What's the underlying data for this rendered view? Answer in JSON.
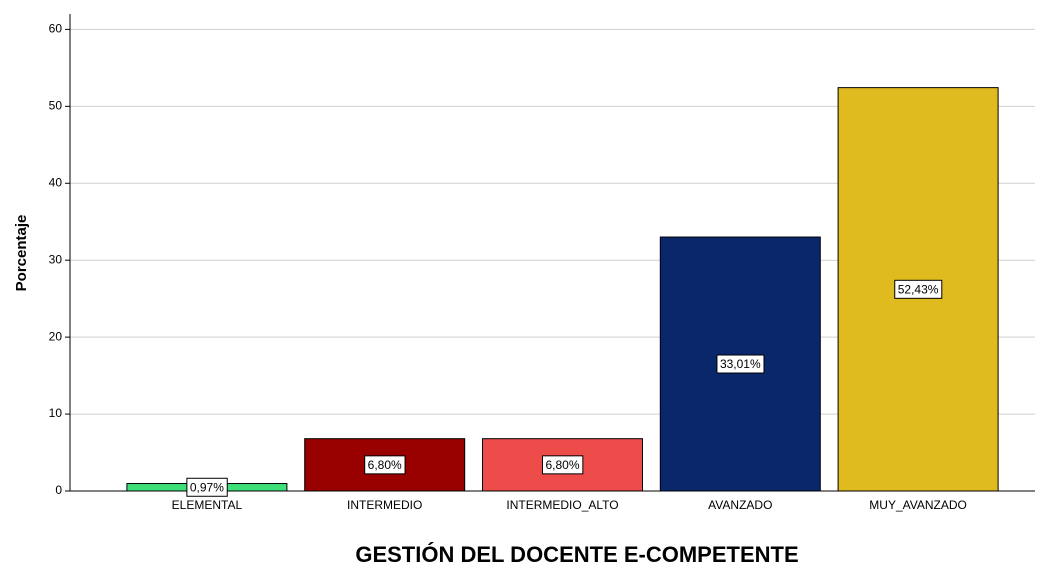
{
  "chart_data": {
    "type": "bar",
    "categories": [
      "ELEMENTAL",
      "INTERMEDIO",
      "INTERMEDIO_ALTO",
      "AVANZADO",
      "MUY_AVANZADO"
    ],
    "values": [
      0.97,
      6.8,
      6.8,
      33.01,
      52.43
    ],
    "value_labels": [
      "0,97%",
      "6,80%",
      "6,80%",
      "33,01%",
      "52,43%"
    ],
    "colors": [
      "#3ee07a",
      "#990000",
      "#ee4b4b",
      "#0b276c",
      "#e0bb1f"
    ],
    "ylabel": "Porcentaje",
    "xlabel": "GESTIÓN DEL DOCENTE E-COMPETENTE",
    "ylim": [
      0,
      62
    ],
    "yticks": [
      0,
      10,
      20,
      30,
      40,
      50,
      60
    ],
    "grid": true
  }
}
